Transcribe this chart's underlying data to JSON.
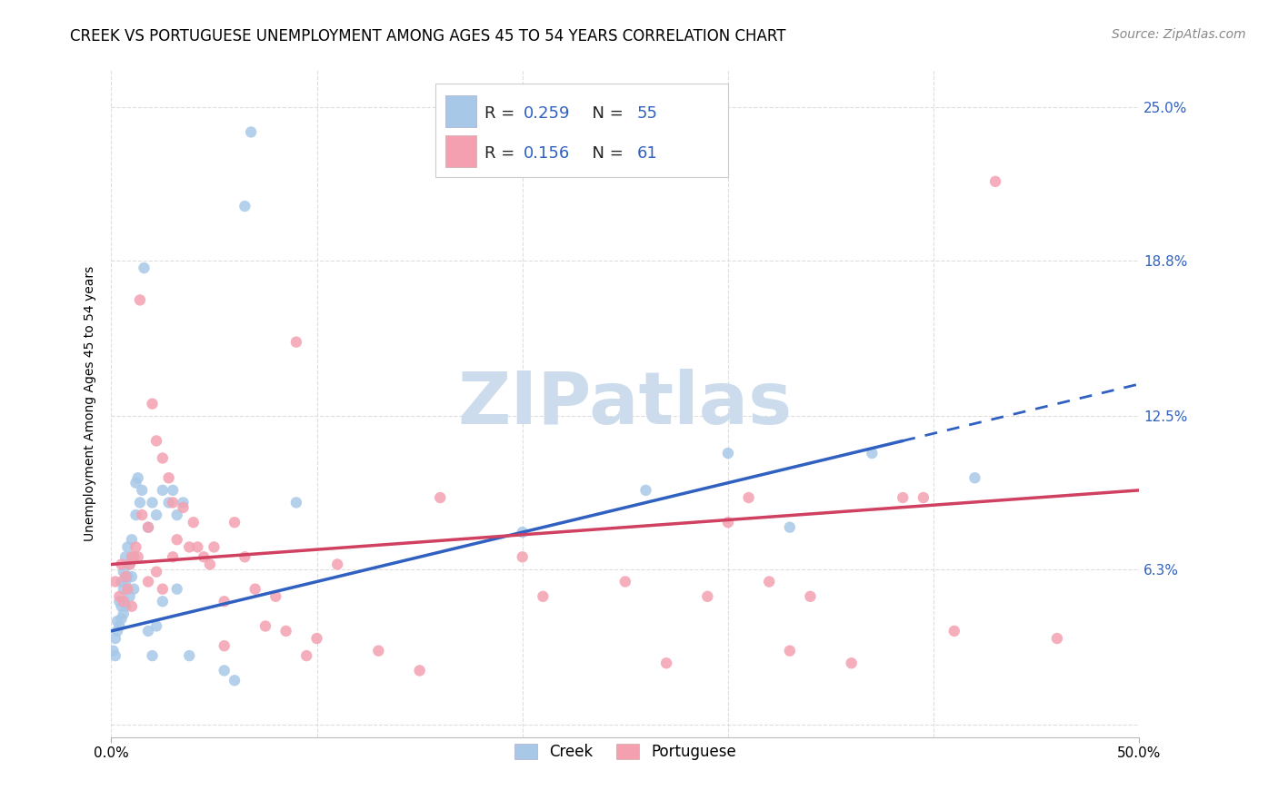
{
  "title": "CREEK VS PORTUGUESE UNEMPLOYMENT AMONG AGES 45 TO 54 YEARS CORRELATION CHART",
  "source": "Source: ZipAtlas.com",
  "ylabel": "Unemployment Among Ages 45 to 54 years",
  "xlim": [
    0,
    0.5
  ],
  "ylim": [
    -0.005,
    0.265
  ],
  "xticks": [
    0.0,
    0.1,
    0.2,
    0.3,
    0.4,
    0.5
  ],
  "yticks": [
    0.0,
    0.063,
    0.125,
    0.188,
    0.25
  ],
  "yticklabels_right": [
    "",
    "6.3%",
    "12.5%",
    "18.8%",
    "25.0%"
  ],
  "creek_color": "#a8c8e8",
  "portuguese_color": "#f4a0b0",
  "trend_creek_color": "#3060c0",
  "trend_portuguese_color": "#d04060",
  "background_color": "#ffffff",
  "grid_color": "#dddddd",
  "watermark_color": "#ccdcec",
  "creek_points": [
    [
      0.001,
      0.03
    ],
    [
      0.002,
      0.035
    ],
    [
      0.002,
      0.028
    ],
    [
      0.003,
      0.042
    ],
    [
      0.003,
      0.038
    ],
    [
      0.004,
      0.05
    ],
    [
      0.004,
      0.04
    ],
    [
      0.005,
      0.058
    ],
    [
      0.005,
      0.048
    ],
    [
      0.005,
      0.043
    ],
    [
      0.006,
      0.062
    ],
    [
      0.006,
      0.055
    ],
    [
      0.006,
      0.045
    ],
    [
      0.007,
      0.068
    ],
    [
      0.007,
      0.058
    ],
    [
      0.007,
      0.048
    ],
    [
      0.008,
      0.072
    ],
    [
      0.008,
      0.06
    ],
    [
      0.009,
      0.065
    ],
    [
      0.009,
      0.052
    ],
    [
      0.01,
      0.075
    ],
    [
      0.01,
      0.06
    ],
    [
      0.011,
      0.068
    ],
    [
      0.011,
      0.055
    ],
    [
      0.012,
      0.098
    ],
    [
      0.012,
      0.085
    ],
    [
      0.013,
      0.1
    ],
    [
      0.014,
      0.09
    ],
    [
      0.015,
      0.095
    ],
    [
      0.016,
      0.185
    ],
    [
      0.018,
      0.08
    ],
    [
      0.018,
      0.038
    ],
    [
      0.02,
      0.09
    ],
    [
      0.02,
      0.028
    ],
    [
      0.022,
      0.085
    ],
    [
      0.022,
      0.04
    ],
    [
      0.025,
      0.095
    ],
    [
      0.025,
      0.05
    ],
    [
      0.028,
      0.09
    ],
    [
      0.03,
      0.095
    ],
    [
      0.032,
      0.085
    ],
    [
      0.032,
      0.055
    ],
    [
      0.035,
      0.09
    ],
    [
      0.038,
      0.028
    ],
    [
      0.055,
      0.022
    ],
    [
      0.06,
      0.018
    ],
    [
      0.065,
      0.21
    ],
    [
      0.068,
      0.24
    ],
    [
      0.09,
      0.09
    ],
    [
      0.2,
      0.078
    ],
    [
      0.26,
      0.095
    ],
    [
      0.3,
      0.11
    ],
    [
      0.33,
      0.08
    ],
    [
      0.37,
      0.11
    ],
    [
      0.42,
      0.1
    ]
  ],
  "portuguese_points": [
    [
      0.002,
      0.058
    ],
    [
      0.004,
      0.052
    ],
    [
      0.005,
      0.065
    ],
    [
      0.006,
      0.05
    ],
    [
      0.007,
      0.06
    ],
    [
      0.008,
      0.055
    ],
    [
      0.009,
      0.065
    ],
    [
      0.01,
      0.068
    ],
    [
      0.01,
      0.048
    ],
    [
      0.012,
      0.072
    ],
    [
      0.013,
      0.068
    ],
    [
      0.014,
      0.172
    ],
    [
      0.015,
      0.085
    ],
    [
      0.018,
      0.08
    ],
    [
      0.018,
      0.058
    ],
    [
      0.02,
      0.13
    ],
    [
      0.022,
      0.115
    ],
    [
      0.022,
      0.062
    ],
    [
      0.025,
      0.108
    ],
    [
      0.025,
      0.055
    ],
    [
      0.028,
      0.1
    ],
    [
      0.03,
      0.09
    ],
    [
      0.03,
      0.068
    ],
    [
      0.032,
      0.075
    ],
    [
      0.035,
      0.088
    ],
    [
      0.038,
      0.072
    ],
    [
      0.04,
      0.082
    ],
    [
      0.042,
      0.072
    ],
    [
      0.045,
      0.068
    ],
    [
      0.048,
      0.065
    ],
    [
      0.05,
      0.072
    ],
    [
      0.055,
      0.05
    ],
    [
      0.055,
      0.032
    ],
    [
      0.06,
      0.082
    ],
    [
      0.065,
      0.068
    ],
    [
      0.07,
      0.055
    ],
    [
      0.075,
      0.04
    ],
    [
      0.08,
      0.052
    ],
    [
      0.085,
      0.038
    ],
    [
      0.09,
      0.155
    ],
    [
      0.095,
      0.028
    ],
    [
      0.1,
      0.035
    ],
    [
      0.11,
      0.065
    ],
    [
      0.13,
      0.03
    ],
    [
      0.15,
      0.022
    ],
    [
      0.16,
      0.092
    ],
    [
      0.2,
      0.068
    ],
    [
      0.21,
      0.052
    ],
    [
      0.25,
      0.058
    ],
    [
      0.27,
      0.025
    ],
    [
      0.29,
      0.052
    ],
    [
      0.3,
      0.082
    ],
    [
      0.31,
      0.092
    ],
    [
      0.32,
      0.058
    ],
    [
      0.33,
      0.03
    ],
    [
      0.34,
      0.052
    ],
    [
      0.36,
      0.025
    ],
    [
      0.385,
      0.092
    ],
    [
      0.395,
      0.092
    ],
    [
      0.41,
      0.038
    ],
    [
      0.43,
      0.22
    ],
    [
      0.46,
      0.035
    ]
  ],
  "trend_creek_solid_end": 0.385,
  "trend_creek_dashed_end": 0.5,
  "title_fontsize": 12,
  "axis_label_fontsize": 10,
  "tick_fontsize": 11,
  "legend_fontsize": 13,
  "source_fontsize": 10
}
